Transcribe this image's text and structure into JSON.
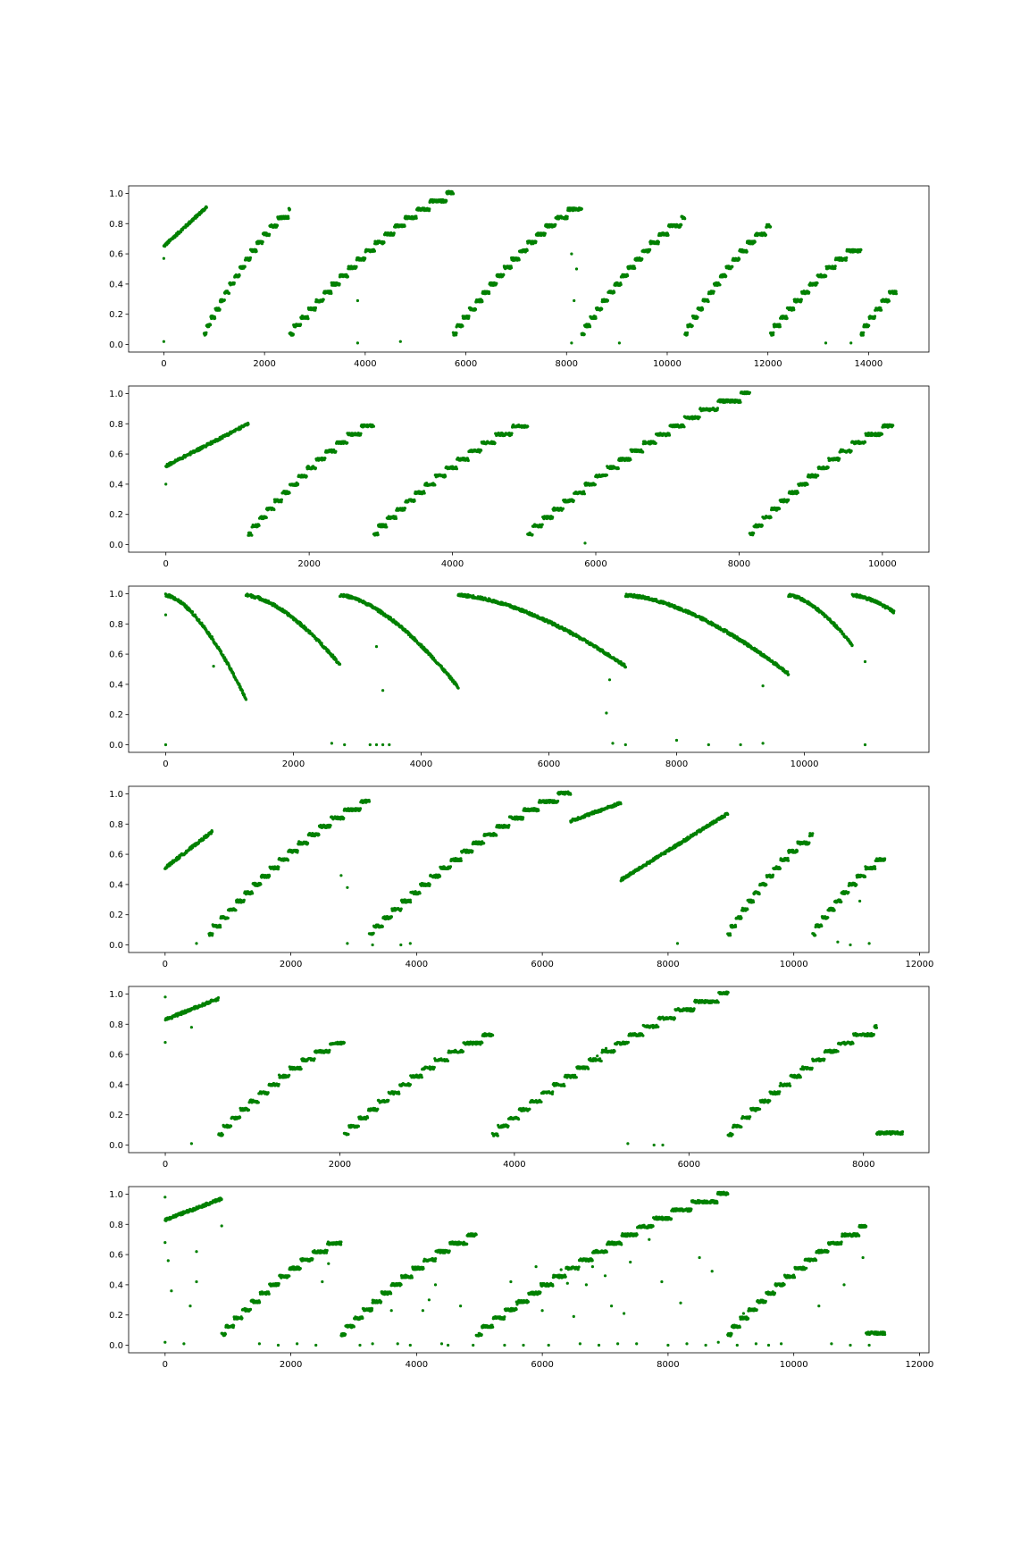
{
  "figure": {
    "background": "#ffffff",
    "marker_color": "#008000"
  },
  "chart_data": [
    {
      "type": "scatter",
      "title": "",
      "xlabel": "",
      "ylabel": "",
      "xlim": [
        -700,
        15200
      ],
      "ylim": [
        -0.05,
        1.05
      ],
      "xticks": [
        0,
        2000,
        4000,
        6000,
        8000,
        10000,
        12000,
        14000
      ],
      "yticks": [
        0.0,
        0.2,
        0.4,
        0.6,
        0.8,
        1.0
      ],
      "grid": false,
      "legend": "none",
      "color": "#008000",
      "segments": [
        [
          0,
          0.65,
          850,
          0.91,
          0
        ],
        [
          800,
          0.07,
          2500,
          0.87,
          -1
        ],
        [
          2500,
          0.07,
          5750,
          0.99,
          -1
        ],
        [
          5750,
          0.07,
          8300,
          0.91,
          -1
        ],
        [
          8300,
          0.07,
          10350,
          0.82,
          -1
        ],
        [
          10350,
          0.07,
          12050,
          0.77,
          -1
        ],
        [
          12050,
          0.07,
          13850,
          0.64,
          -1
        ],
        [
          13850,
          0.07,
          14550,
          0.35,
          -1
        ]
      ],
      "outliers": [
        [
          0,
          0.57
        ],
        [
          0,
          0.02
        ],
        [
          3850,
          0.29
        ],
        [
          3850,
          0.01
        ],
        [
          4700,
          0.02
        ],
        [
          8100,
          0.6
        ],
        [
          8200,
          0.5
        ],
        [
          8150,
          0.29
        ],
        [
          8100,
          0.01
        ],
        [
          9050,
          0.01
        ],
        [
          13150,
          0.01
        ],
        [
          13650,
          0.01
        ]
      ]
    },
    {
      "type": "scatter",
      "title": "",
      "xlabel": "",
      "ylabel": "",
      "xlim": [
        -520,
        10650
      ],
      "ylim": [
        -0.05,
        1.05
      ],
      "xticks": [
        0,
        2000,
        4000,
        6000,
        8000,
        10000
      ],
      "yticks": [
        0.0,
        0.2,
        0.4,
        0.6,
        0.8,
        1.0
      ],
      "grid": false,
      "legend": "none",
      "color": "#008000",
      "segments": [
        [
          0,
          0.52,
          1150,
          0.8,
          0
        ],
        [
          1150,
          0.07,
          2900,
          0.79,
          -1
        ],
        [
          2900,
          0.07,
          5050,
          0.79,
          -1
        ],
        [
          5050,
          0.07,
          8150,
          0.99,
          -1
        ],
        [
          8150,
          0.07,
          10150,
          0.78,
          -1
        ]
      ],
      "outliers": [
        [
          0,
          0.4
        ],
        [
          5850,
          0.01
        ]
      ]
    },
    {
      "type": "scatter",
      "title": "",
      "xlabel": "",
      "ylabel": "",
      "xlim": [
        -580,
        11950
      ],
      "ylim": [
        -0.05,
        1.05
      ],
      "xticks": [
        0,
        2000,
        4000,
        6000,
        8000,
        10000
      ],
      "yticks": [
        0.0,
        0.2,
        0.4,
        0.6,
        0.8,
        1.0
      ],
      "grid": false,
      "legend": "none",
      "color": "#008000",
      "segments": [
        [
          0,
          0.99,
          1260,
          0.3,
          1
        ],
        [
          1260,
          0.99,
          2730,
          0.53,
          1
        ],
        [
          2730,
          0.99,
          4580,
          0.38,
          1
        ],
        [
          4580,
          0.99,
          7200,
          0.52,
          1
        ],
        [
          7200,
          0.99,
          9750,
          0.47,
          1
        ],
        [
          9750,
          0.99,
          10750,
          0.66,
          1
        ],
        [
          10750,
          0.99,
          11400,
          0.88,
          1
        ]
      ],
      "outliers": [
        [
          0,
          0.86
        ],
        [
          0,
          0.0
        ],
        [
          750,
          0.52
        ],
        [
          2600,
          0.01
        ],
        [
          2800,
          0.0
        ],
        [
          3200,
          0.0
        ],
        [
          3300,
          0.0
        ],
        [
          3400,
          0.0
        ],
        [
          3500,
          0.0
        ],
        [
          3400,
          0.36
        ],
        [
          3300,
          0.65
        ],
        [
          6900,
          0.21
        ],
        [
          6950,
          0.43
        ],
        [
          7000,
          0.01
        ],
        [
          7200,
          0.0
        ],
        [
          8000,
          0.03
        ],
        [
          8500,
          0.0
        ],
        [
          9000,
          0.0
        ],
        [
          9350,
          0.01
        ],
        [
          9350,
          0.39
        ],
        [
          10950,
          0.0
        ],
        [
          10950,
          0.55
        ]
      ]
    },
    {
      "type": "scatter",
      "title": "",
      "xlabel": "",
      "ylabel": "",
      "xlim": [
        -580,
        12150
      ],
      "ylim": [
        -0.05,
        1.05
      ],
      "xticks": [
        0,
        2000,
        4000,
        6000,
        8000,
        10000,
        12000
      ],
      "yticks": [
        0.0,
        0.2,
        0.4,
        0.6,
        0.8,
        1.0
      ],
      "grid": false,
      "legend": "none",
      "color": "#008000",
      "segments": [
        [
          0,
          0.51,
          750,
          0.75,
          0
        ],
        [
          700,
          0.07,
          3250,
          0.94,
          -1
        ],
        [
          3250,
          0.07,
          6450,
          1.0,
          -1
        ],
        [
          6450,
          0.82,
          7250,
          0.94,
          0
        ],
        [
          7250,
          0.43,
          8950,
          0.87,
          0
        ],
        [
          8950,
          0.07,
          10300,
          0.71,
          -1
        ],
        [
          10300,
          0.07,
          11450,
          0.57,
          -1
        ]
      ],
      "outliers": [
        [
          500,
          0.01
        ],
        [
          2800,
          0.46
        ],
        [
          2900,
          0.38
        ],
        [
          2900,
          0.01
        ],
        [
          3300,
          0.0
        ],
        [
          3750,
          0.0
        ],
        [
          3900,
          0.01
        ],
        [
          8150,
          0.01
        ],
        [
          10700,
          0.02
        ],
        [
          10900,
          0.0
        ],
        [
          11050,
          0.29
        ],
        [
          11200,
          0.01
        ]
      ]
    },
    {
      "type": "scatter",
      "title": "",
      "xlabel": "",
      "ylabel": "",
      "xlim": [
        -420,
        8750
      ],
      "ylim": [
        -0.05,
        1.05
      ],
      "xticks": [
        0,
        2000,
        4000,
        6000,
        8000
      ],
      "yticks": [
        0.0,
        0.2,
        0.4,
        0.6,
        0.8,
        1.0
      ],
      "grid": false,
      "legend": "none",
      "color": "#008000",
      "segments": [
        [
          0,
          0.83,
          610,
          0.97,
          0
        ],
        [
          610,
          0.07,
          2050,
          0.68,
          -1
        ],
        [
          2050,
          0.07,
          3750,
          0.72,
          -1
        ],
        [
          3750,
          0.07,
          6450,
          0.99,
          -1
        ],
        [
          6450,
          0.07,
          8150,
          0.76,
          -1
        ],
        [
          8150,
          0.08,
          8450,
          0.08,
          0
        ]
      ],
      "outliers": [
        [
          0,
          0.68
        ],
        [
          0,
          0.98
        ],
        [
          300,
          0.01
        ],
        [
          300,
          0.78
        ],
        [
          5300,
          0.01
        ],
        [
          5600,
          0.0
        ],
        [
          5700,
          0.0
        ],
        [
          4950,
          0.59
        ],
        [
          5050,
          0.64
        ]
      ]
    },
    {
      "type": "scatter",
      "title": "",
      "xlabel": "",
      "ylabel": "",
      "xlim": [
        -580,
        12150
      ],
      "ylim": [
        -0.05,
        1.05
      ],
      "xticks": [
        0,
        2000,
        4000,
        6000,
        8000,
        10000,
        12000
      ],
      "yticks": [
        0.0,
        0.2,
        0.4,
        0.6,
        0.8,
        1.0
      ],
      "grid": false,
      "legend": "none",
      "color": "#008000",
      "segments": [
        [
          0,
          0.83,
          900,
          0.97,
          0
        ],
        [
          900,
          0.07,
          2800,
          0.68,
          -1
        ],
        [
          2800,
          0.07,
          4950,
          0.72,
          -1
        ],
        [
          4950,
          0.07,
          8950,
          0.99,
          -1
        ],
        [
          8950,
          0.07,
          11150,
          0.77,
          -1
        ],
        [
          11150,
          0.08,
          11450,
          0.08,
          0
        ]
      ],
      "outliers": [
        [
          0,
          0.98
        ],
        [
          0,
          0.68
        ],
        [
          50,
          0.56
        ],
        [
          100,
          0.36
        ],
        [
          400,
          0.26
        ],
        [
          500,
          0.62
        ],
        [
          500,
          0.42
        ],
        [
          900,
          0.79
        ],
        [
          300,
          0.01
        ],
        [
          0,
          0.02
        ],
        [
          1500,
          0.01
        ],
        [
          1800,
          0.0
        ],
        [
          2100,
          0.01
        ],
        [
          2400,
          0.0
        ],
        [
          2500,
          0.42
        ],
        [
          2600,
          0.54
        ],
        [
          3100,
          0.0
        ],
        [
          3300,
          0.01
        ],
        [
          3600,
          0.23
        ],
        [
          3700,
          0.01
        ],
        [
          3900,
          0.0
        ],
        [
          4100,
          0.23
        ],
        [
          4200,
          0.3
        ],
        [
          4300,
          0.4
        ],
        [
          4400,
          0.01
        ],
        [
          4500,
          0.0
        ],
        [
          4700,
          0.26
        ],
        [
          4900,
          0.0
        ],
        [
          5400,
          0.0
        ],
        [
          5500,
          0.42
        ],
        [
          5600,
          0.27
        ],
        [
          5700,
          0.0
        ],
        [
          5900,
          0.52
        ],
        [
          6000,
          0.23
        ],
        [
          6100,
          0.0
        ],
        [
          6300,
          0.5
        ],
        [
          6400,
          0.41
        ],
        [
          6500,
          0.19
        ],
        [
          6600,
          0.01
        ],
        [
          6700,
          0.4
        ],
        [
          6800,
          0.52
        ],
        [
          6900,
          0.0
        ],
        [
          7000,
          0.46
        ],
        [
          7100,
          0.26
        ],
        [
          7200,
          0.01
        ],
        [
          7300,
          0.21
        ],
        [
          7400,
          0.55
        ],
        [
          7500,
          0.01
        ],
        [
          7700,
          0.7
        ],
        [
          7900,
          0.42
        ],
        [
          8000,
          0.0
        ],
        [
          8200,
          0.28
        ],
        [
          8300,
          0.01
        ],
        [
          8500,
          0.58
        ],
        [
          8600,
          0.0
        ],
        [
          8700,
          0.49
        ],
        [
          8800,
          0.02
        ],
        [
          9100,
          0.0
        ],
        [
          9200,
          0.21
        ],
        [
          9400,
          0.01
        ],
        [
          9600,
          0.0
        ],
        [
          9800,
          0.01
        ],
        [
          10200,
          0.51
        ],
        [
          10400,
          0.26
        ],
        [
          10600,
          0.01
        ],
        [
          10800,
          0.4
        ],
        [
          10900,
          0.0
        ],
        [
          11100,
          0.58
        ],
        [
          11200,
          0.0
        ]
      ]
    }
  ]
}
